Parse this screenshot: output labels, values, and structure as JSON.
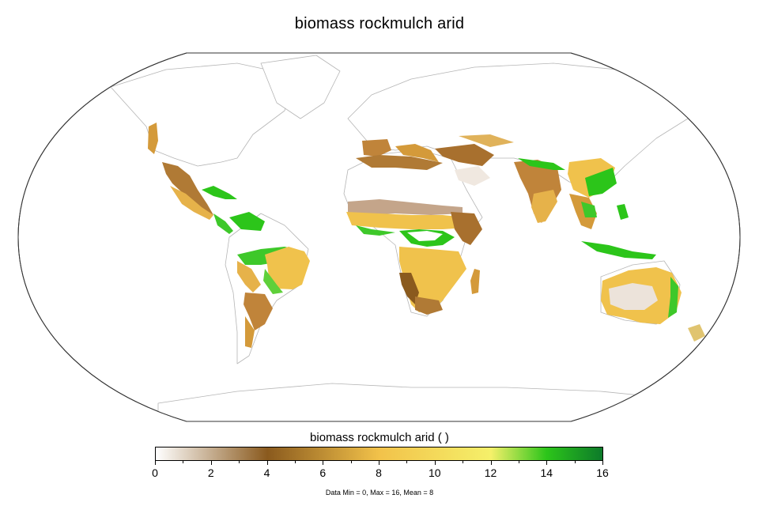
{
  "map": {
    "title": "biomass rockmulch arid",
    "projection": "Robinson",
    "basemap": "country and state borders",
    "value_range": [
      0,
      16
    ]
  },
  "colorbar": {
    "title": "biomass rockmulch arid ( )",
    "ticks": [
      "0",
      "2",
      "4",
      "6",
      "8",
      "10",
      "12",
      "14",
      "16"
    ],
    "colors": [
      "#ffffff",
      "#8a5a1e",
      "#f2c24a",
      "#f5f06a",
      "#2cc51a",
      "#0d7a2a"
    ]
  },
  "stats": "Data Min = 0, Max = 16, Mean = 8"
}
